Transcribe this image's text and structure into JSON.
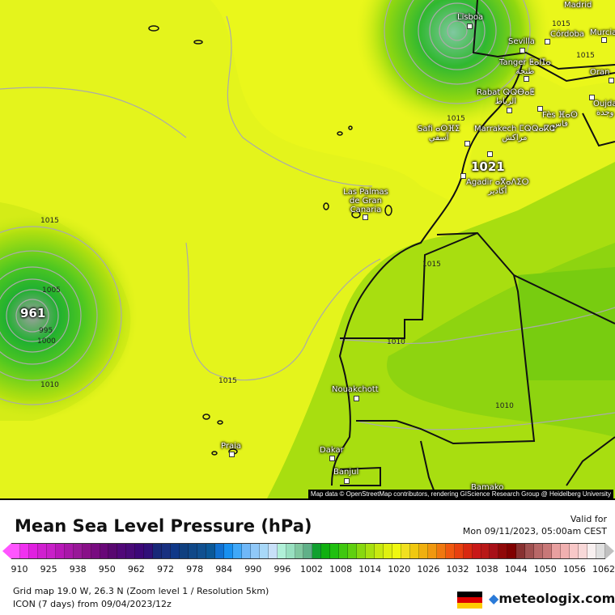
{
  "map": {
    "cities": [
      {
        "name": "Lisboa",
        "x": 0
      },
      {
        "name": "Sevilla"
      },
      {
        "name": "Córdoba"
      },
      {
        "name": "Madrid"
      },
      {
        "name": "Murcia"
      },
      {
        "name": "Tanger ⵟⴰⵏⵊⴰ",
        "arabic": "طنجة"
      },
      {
        "name": "Oran"
      },
      {
        "name": "Rabat ⵕⵕⴱⴰⵟ",
        "arabic": "الرباط"
      },
      {
        "name": "Fès ⴼⴰⵙ",
        "arabic": "فاس"
      },
      {
        "name": "Oujda",
        "arabic": "وجدة"
      },
      {
        "name": "Safi ⴰⵙⴼⵉ",
        "arabic": "آسفي"
      },
      {
        "name": "Marrakech ⵎⵕⵕⴰⴽⵛ",
        "arabic": "مراكش"
      },
      {
        "name": "Agadir ⴰⴳⴰⴷⵉⵔ",
        "arabic": "أكادير"
      },
      {
        "name": "Las Palmas de Gran Canaria"
      },
      {
        "name": "Nouakchott"
      },
      {
        "name": "Praia"
      },
      {
        "name": "Dakar"
      },
      {
        "name": "Banjul"
      },
      {
        "name": "Bamako"
      }
    ],
    "isobar_labels": [
      "1015",
      "1015",
      "1015",
      "1015",
      "1010",
      "1010",
      "1010",
      "1005",
      "1000",
      "995",
      "1015",
      "1015"
    ],
    "pressure_centers": [
      {
        "value": "961"
      },
      {
        "value": "1021"
      }
    ],
    "attribution": "Map data © OpenStreetMap contributors, rendering GIScience Research Group @ Heidelberg University"
  },
  "legend": {
    "title": "Mean Sea Level Pressure (hPa)",
    "valid_label": "Valid for",
    "valid_time": "Mon 09/11/2023, 05:00am CEST",
    "ticks": [
      "910",
      "925",
      "938",
      "950",
      "962",
      "972",
      "978",
      "984",
      "990",
      "996",
      "1002",
      "1008",
      "1014",
      "1020",
      "1026",
      "1032",
      "1038",
      "1044",
      "1050",
      "1056",
      "1062"
    ],
    "colors": [
      "#ff55ff",
      "#f030f0",
      "#e020e0",
      "#d020d0",
      "#c820c8",
      "#b818b8",
      "#a818a8",
      "#981898",
      "#881088",
      "#780c80",
      "#680878",
      "#580870",
      "#500878",
      "#480a78",
      "#3c0878",
      "#301078",
      "#182878",
      "#183080",
      "#103888",
      "#104080",
      "#104888",
      "#105090",
      "#0a5898",
      "#1070d0",
      "#1890f0",
      "#40a8f8",
      "#70b8f8",
      "#90c8f8",
      "#a8d8f8",
      "#c8e0f8",
      "#b0f0d8",
      "#98e0c0",
      "#80c8a0",
      "#60b088",
      "#10a030",
      "#10b010",
      "#20c010",
      "#40c810",
      "#60d010",
      "#88d810",
      "#a8e010",
      "#c8e810",
      "#e0f010",
      "#f0f810",
      "#f0e020",
      "#f0c810",
      "#f0b010",
      "#f09810",
      "#f07810",
      "#f05810",
      "#e84010",
      "#d82810",
      "#c81818",
      "#b81818",
      "#a81018",
      "#900808",
      "#800000",
      "#883030",
      "#a05050",
      "#b86868",
      "#c87878",
      "#e8a0a0",
      "#f0b0b0",
      "#f8c8c8",
      "#f8d8d8",
      "#f8f0f0",
      "#e0e0e0"
    ]
  },
  "footer": {
    "grid_info": "Grid map 19.0 W, 26.3 N (Zoom level 1 / Resolution 5km)",
    "model_info": "ICON (7 days) from  09/04/2023/12z",
    "brand": "meteologix.com"
  }
}
